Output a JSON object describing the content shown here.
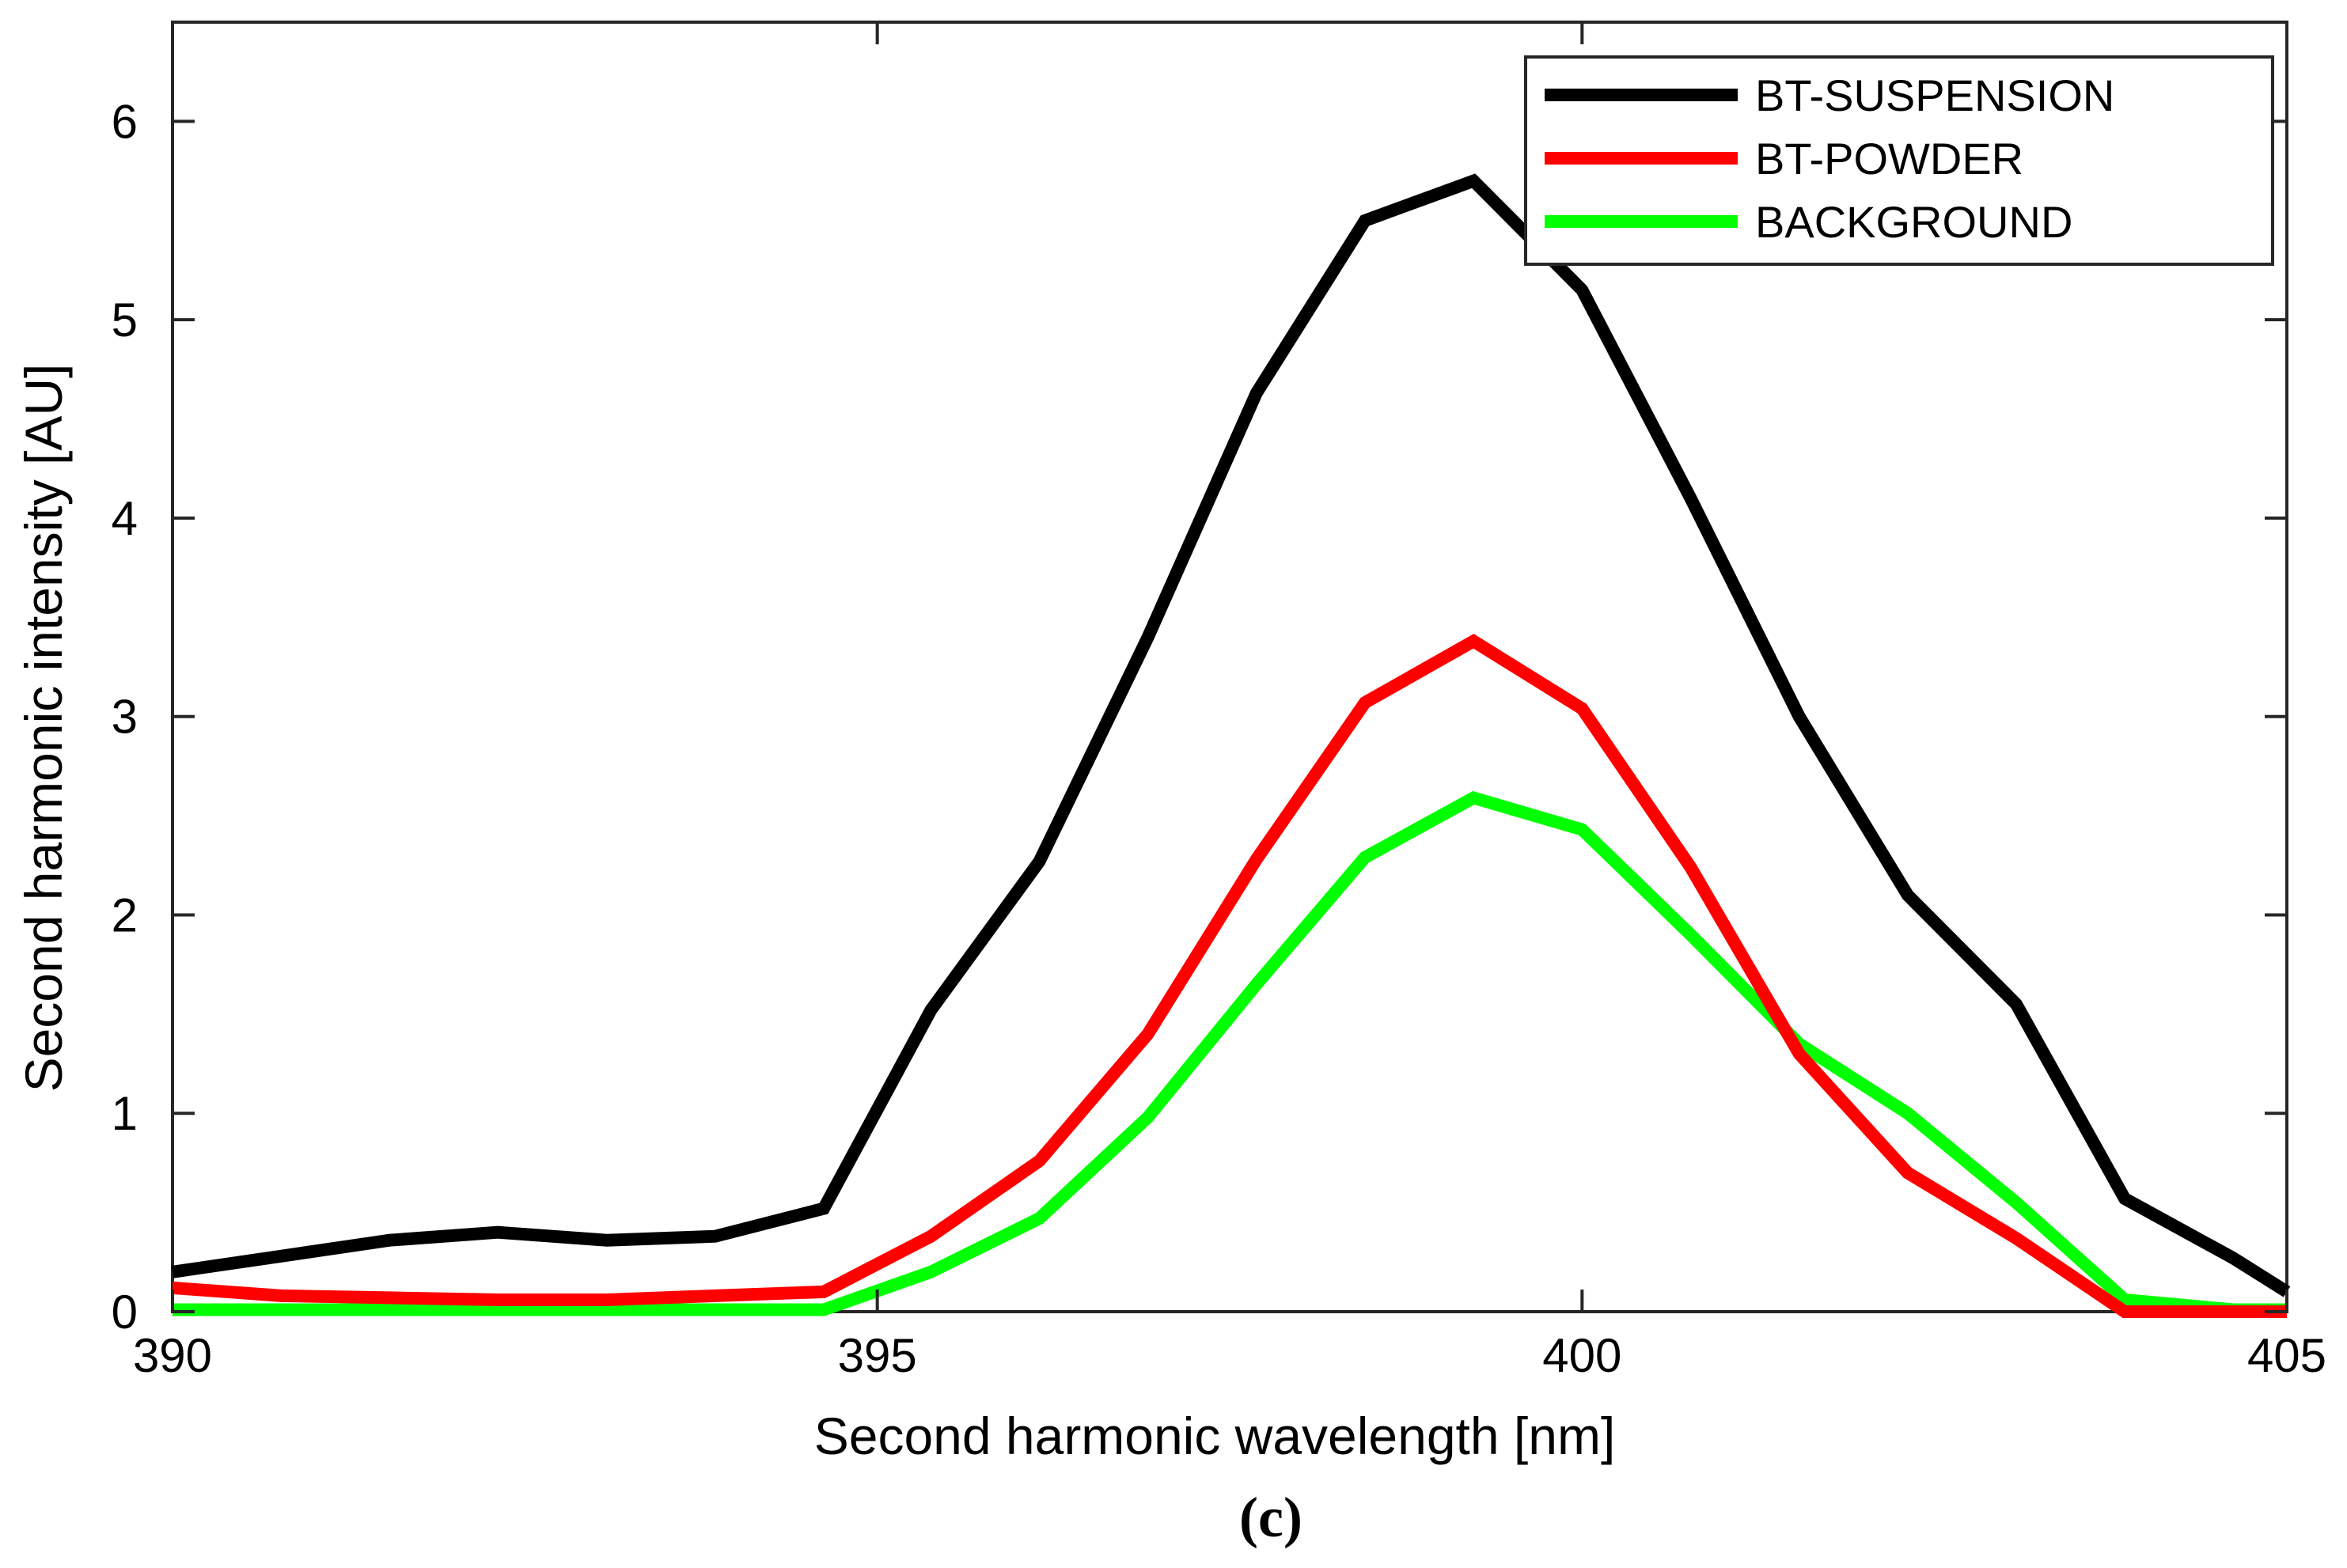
{
  "chart_data": {
    "type": "line",
    "xlabel": "Second harmonic wavelength [nm]",
    "ylabel": "Second harmonic intensity [AU]",
    "caption": "(c)",
    "xlim": [
      390,
      405
    ],
    "ylim": [
      0,
      6.5
    ],
    "xticks": [
      "390",
      "395",
      "400",
      "405"
    ],
    "yticks": [
      "0",
      "1",
      "2",
      "3",
      "4",
      "5",
      "6"
    ],
    "grid": false,
    "legend_position": "top-right",
    "x": [
      390,
      390.77,
      391.54,
      392.31,
      393.08,
      393.85,
      394.62,
      395.38,
      396.15,
      396.92,
      397.69,
      398.46,
      399.23,
      400,
      400.77,
      401.54,
      402.31,
      403.08,
      403.85,
      404.62,
      405
    ],
    "series": [
      {
        "name": "BT-SUSPENSION",
        "color": "#000000",
        "values": [
          0.2,
          0.28,
          0.36,
          0.4,
          0.36,
          0.38,
          0.52,
          1.52,
          2.27,
          3.4,
          4.63,
          5.5,
          5.7,
          5.15,
          4.1,
          3.0,
          2.1,
          1.55,
          0.57,
          0.27,
          0.1
        ]
      },
      {
        "name": "BT-POWDER",
        "color": "#ff0000",
        "values": [
          0.12,
          0.08,
          0.07,
          0.06,
          0.06,
          0.08,
          0.1,
          0.38,
          0.76,
          1.4,
          2.28,
          3.07,
          3.38,
          3.04,
          2.24,
          1.3,
          0.7,
          0.37,
          0.0,
          0.0,
          0.0
        ]
      },
      {
        "name": "BACKGROUND",
        "color": "#00ff00",
        "values": [
          0.01,
          0.01,
          0.01,
          0.01,
          0.01,
          0.01,
          0.01,
          0.2,
          0.47,
          0.98,
          1.65,
          2.29,
          2.59,
          2.43,
          1.9,
          1.35,
          1.0,
          0.55,
          0.06,
          0.01,
          0.01
        ]
      }
    ]
  }
}
